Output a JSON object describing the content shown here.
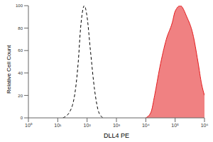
{
  "chart_data": {
    "type": "histogram_overlay",
    "x_label": "DLL4 PE",
    "y_label": "Relative Cell Count",
    "log": "x",
    "xlim": [
      1,
      1000000
    ],
    "xticks": [
      {
        "value": 1,
        "label": "10⁰"
      },
      {
        "value": 10,
        "label": "10¹"
      },
      {
        "value": 100,
        "label": "10²"
      },
      {
        "value": 1000,
        "label": "10³"
      },
      {
        "value": 10000,
        "label": "10⁴"
      },
      {
        "value": 100000,
        "label": "10⁵"
      },
      {
        "value": 1000000,
        "label": "10⁶"
      }
    ],
    "ylim": [
      0,
      100
    ],
    "yticks": [
      0,
      20,
      40,
      60,
      80,
      100
    ],
    "series": [
      {
        "type": "line",
        "color": "#000000",
        "line_style": "dashed",
        "x": [
          15,
          25,
          40,
          50,
          60,
          70,
          80,
          100,
          130,
          180,
          250,
          350
        ],
        "values": [
          0,
          5,
          25,
          50,
          80,
          95,
          100,
          90,
          60,
          25,
          5,
          0
        ]
      },
      {
        "type": "area",
        "color": "#e31a1c",
        "line_style": "solid",
        "x": [
          10000,
          15000,
          20000,
          30000,
          50000,
          80000,
          100000,
          150000,
          250000,
          400000,
          600000,
          800000,
          1000000
        ],
        "values": [
          0,
          5,
          20,
          45,
          70,
          85,
          95,
          100,
          90,
          75,
          50,
          30,
          20
        ]
      }
    ]
  }
}
